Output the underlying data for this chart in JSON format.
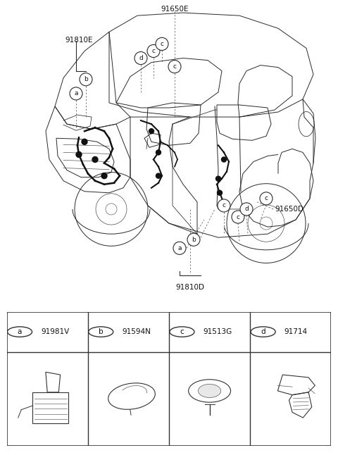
{
  "bg_color": "#ffffff",
  "fig_width": 4.8,
  "fig_height": 6.46,
  "dpi": 100,
  "parts_labels": [
    {
      "circle_label": "a",
      "part_num": "91981V"
    },
    {
      "circle_label": "b",
      "part_num": "91594N"
    },
    {
      "circle_label": "c",
      "part_num": "91513G"
    },
    {
      "circle_label": "d",
      "part_num": "91714"
    }
  ],
  "line_color": "#2a2a2a",
  "dash_color": "#555555",
  "callout_font_size": 7.0,
  "label_circle_r": 0.022,
  "label_font_size": 6.5
}
